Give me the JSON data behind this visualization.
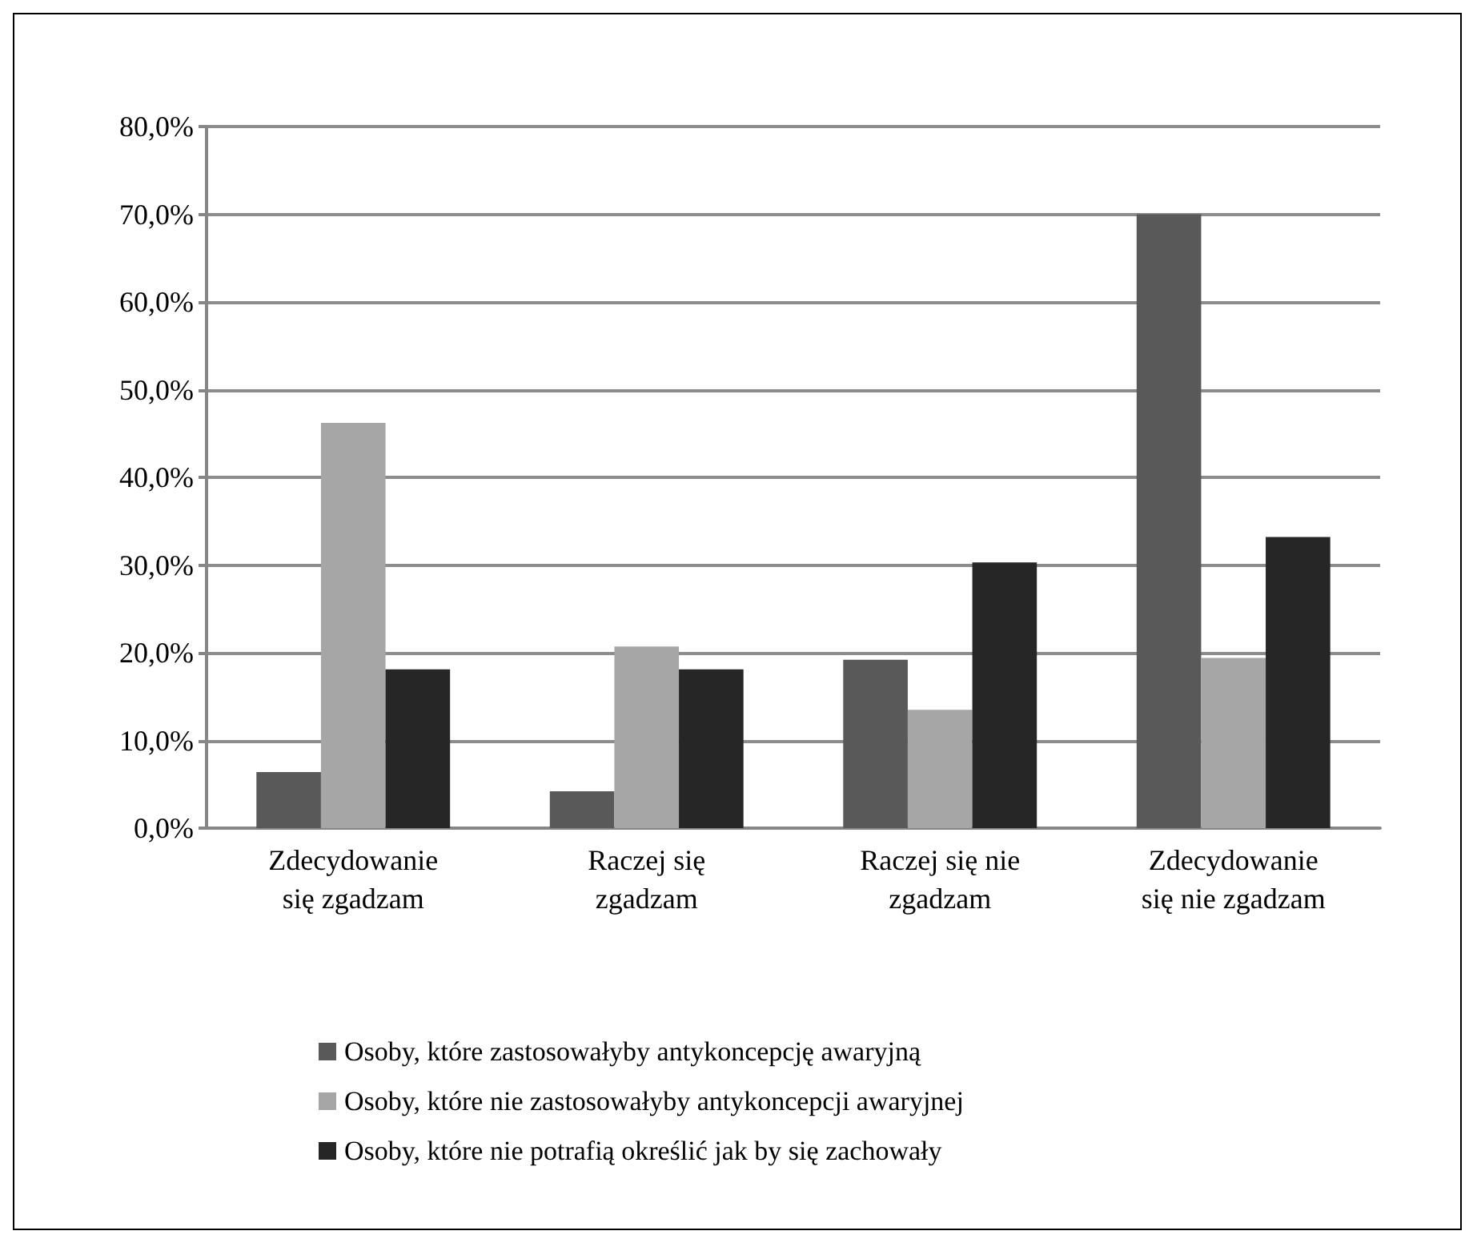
{
  "chart_data": {
    "type": "bar",
    "categories": [
      "Zdecydowanie\nsię zgadzam",
      "Raczej się\nzgadzam",
      "Raczej się nie\nzgadzam",
      "Zdecydowanie\nsię nie zgadzam"
    ],
    "series": [
      {
        "name": "Osoby, które zastosowałyby antykoncepcję awaryjną",
        "color": "#595959",
        "values": [
          6.4,
          4.2,
          19.2,
          70.0
        ]
      },
      {
        "name": "Osoby, które nie zastosowałyby antykoncepcji awaryjnej",
        "color": "#a6a6a6",
        "values": [
          46.2,
          20.7,
          13.5,
          19.4
        ]
      },
      {
        "name": "Osoby, które nie potrafią określić jak by się zachowały",
        "color": "#262626",
        "values": [
          18.1,
          18.1,
          30.3,
          33.2
        ]
      }
    ],
    "ylim": [
      0,
      80
    ],
    "yticks": [
      {
        "value": 0,
        "label": "0,0%"
      },
      {
        "value": 10,
        "label": "10,0%"
      },
      {
        "value": 20,
        "label": "20,0%"
      },
      {
        "value": 30,
        "label": "30,0%"
      },
      {
        "value": 40,
        "label": "40,0%"
      },
      {
        "value": 50,
        "label": "50,0%"
      },
      {
        "value": 60,
        "label": "60,0%"
      },
      {
        "value": 70,
        "label": "70,0%"
      },
      {
        "value": 80,
        "label": "80,0%"
      }
    ],
    "grid": "y",
    "legend": "bottom"
  }
}
